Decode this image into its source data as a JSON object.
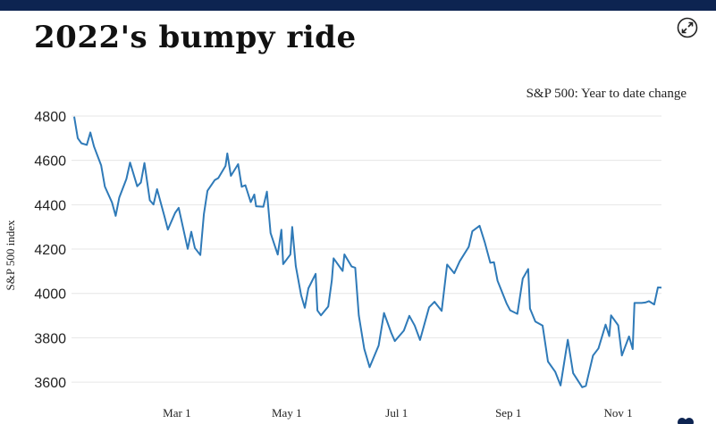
{
  "header": {
    "title": "2022's bumpy ride",
    "expand_icon": "expand-arrows-icon"
  },
  "chart_data": {
    "type": "line",
    "subtitle": "S&P 500: Year to date change",
    "ylabel": "S&P 500 index",
    "xlabel": "",
    "ylim": [
      3560,
      4820
    ],
    "yticks": [
      3600,
      3800,
      4000,
      4200,
      4400,
      4600,
      4800
    ],
    "xlim": [
      "2022-01-03",
      "2022-11-25"
    ],
    "xticks": [
      {
        "date": "2022-03-01",
        "label": "Mar 1"
      },
      {
        "date": "2022-05-01",
        "label": "May 1"
      },
      {
        "date": "2022-07-01",
        "label": "Jul 1"
      },
      {
        "date": "2022-09-01",
        "label": "Sep 1"
      },
      {
        "date": "2022-11-01",
        "label": "Nov 1"
      }
    ],
    "grid": "horizontal",
    "line_color": "#2f7ab8",
    "series": [
      {
        "points": [
          [
            "2022-01-03",
            4797
          ],
          [
            "2022-01-05",
            4700
          ],
          [
            "2022-01-07",
            4677
          ],
          [
            "2022-01-10",
            4670
          ],
          [
            "2022-01-12",
            4726
          ],
          [
            "2022-01-14",
            4662
          ],
          [
            "2022-01-18",
            4577
          ],
          [
            "2022-01-20",
            4482
          ],
          [
            "2022-01-24",
            4410
          ],
          [
            "2022-01-26",
            4350
          ],
          [
            "2022-01-28",
            4432
          ],
          [
            "2022-02-01",
            4516
          ],
          [
            "2022-02-03",
            4590
          ],
          [
            "2022-02-07",
            4483
          ],
          [
            "2022-02-09",
            4500
          ],
          [
            "2022-02-11",
            4588
          ],
          [
            "2022-02-14",
            4420
          ],
          [
            "2022-02-16",
            4401
          ],
          [
            "2022-02-18",
            4470
          ],
          [
            "2022-02-22",
            4350
          ],
          [
            "2022-02-24",
            4288
          ],
          [
            "2022-02-28",
            4363
          ],
          [
            "2022-03-02",
            4386
          ],
          [
            "2022-03-07",
            4201
          ],
          [
            "2022-03-09",
            4278
          ],
          [
            "2022-03-11",
            4205
          ],
          [
            "2022-03-14",
            4173
          ],
          [
            "2022-03-16",
            4358
          ],
          [
            "2022-03-18",
            4463
          ],
          [
            "2022-03-22",
            4511
          ],
          [
            "2022-03-24",
            4520
          ],
          [
            "2022-03-28",
            4575
          ],
          [
            "2022-03-29",
            4631
          ],
          [
            "2022-03-31",
            4530
          ],
          [
            "2022-04-04",
            4583
          ],
          [
            "2022-04-06",
            4481
          ],
          [
            "2022-04-08",
            4488
          ],
          [
            "2022-04-11",
            4412
          ],
          [
            "2022-04-13",
            4446
          ],
          [
            "2022-04-14",
            4393
          ],
          [
            "2022-04-18",
            4391
          ],
          [
            "2022-04-20",
            4459
          ],
          [
            "2022-04-22",
            4272
          ],
          [
            "2022-04-26",
            4175
          ],
          [
            "2022-04-28",
            4287
          ],
          [
            "2022-04-29",
            4132
          ],
          [
            "2022-05-03",
            4175
          ],
          [
            "2022-05-04",
            4300
          ],
          [
            "2022-05-06",
            4123
          ],
          [
            "2022-05-09",
            3991
          ],
          [
            "2022-05-11",
            3935
          ],
          [
            "2022-05-13",
            4023
          ],
          [
            "2022-05-17",
            4088
          ],
          [
            "2022-05-18",
            3923
          ],
          [
            "2022-05-20",
            3901
          ],
          [
            "2022-05-24",
            3941
          ],
          [
            "2022-05-26",
            4058
          ],
          [
            "2022-05-27",
            4158
          ],
          [
            "2022-06-01",
            4101
          ],
          [
            "2022-06-02",
            4176
          ],
          [
            "2022-06-06",
            4121
          ],
          [
            "2022-06-08",
            4116
          ],
          [
            "2022-06-10",
            3901
          ],
          [
            "2022-06-13",
            3750
          ],
          [
            "2022-06-16",
            3667
          ],
          [
            "2022-06-21",
            3765
          ],
          [
            "2022-06-24",
            3912
          ],
          [
            "2022-06-28",
            3822
          ],
          [
            "2022-06-30",
            3785
          ],
          [
            "2022-07-05",
            3832
          ],
          [
            "2022-07-08",
            3899
          ],
          [
            "2022-07-11",
            3855
          ],
          [
            "2022-07-14",
            3790
          ],
          [
            "2022-07-19",
            3937
          ],
          [
            "2022-07-22",
            3962
          ],
          [
            "2022-07-26",
            3921
          ],
          [
            "2022-07-29",
            4130
          ],
          [
            "2022-08-02",
            4091
          ],
          [
            "2022-08-05",
            4145
          ],
          [
            "2022-08-10",
            4210
          ],
          [
            "2022-08-12",
            4280
          ],
          [
            "2022-08-16",
            4305
          ],
          [
            "2022-08-19",
            4228
          ],
          [
            "2022-08-22",
            4138
          ],
          [
            "2022-08-24",
            4141
          ],
          [
            "2022-08-26",
            4057
          ],
          [
            "2022-08-31",
            3955
          ],
          [
            "2022-09-02",
            3924
          ],
          [
            "2022-09-06",
            3908
          ],
          [
            "2022-09-09",
            4067
          ],
          [
            "2022-09-12",
            4110
          ],
          [
            "2022-09-13",
            3932
          ],
          [
            "2022-09-16",
            3873
          ],
          [
            "2022-09-20",
            3855
          ],
          [
            "2022-09-23",
            3693
          ],
          [
            "2022-09-27",
            3647
          ],
          [
            "2022-09-30",
            3585
          ],
          [
            "2022-10-04",
            3791
          ],
          [
            "2022-10-07",
            3640
          ],
          [
            "2022-10-12",
            3577
          ],
          [
            "2022-10-14",
            3583
          ],
          [
            "2022-10-18",
            3720
          ],
          [
            "2022-10-21",
            3752
          ],
          [
            "2022-10-25",
            3859
          ],
          [
            "2022-10-27",
            3807
          ],
          [
            "2022-10-28",
            3901
          ],
          [
            "2022-11-01",
            3856
          ],
          [
            "2022-11-03",
            3720
          ],
          [
            "2022-11-07",
            3806
          ],
          [
            "2022-11-09",
            3749
          ],
          [
            "2022-11-10",
            3957
          ],
          [
            "2022-11-14",
            3957
          ],
          [
            "2022-11-16",
            3959
          ],
          [
            "2022-11-18",
            3965
          ],
          [
            "2022-11-21",
            3950
          ],
          [
            "2022-11-23",
            4027
          ],
          [
            "2022-11-25",
            4026
          ]
        ]
      }
    ]
  }
}
